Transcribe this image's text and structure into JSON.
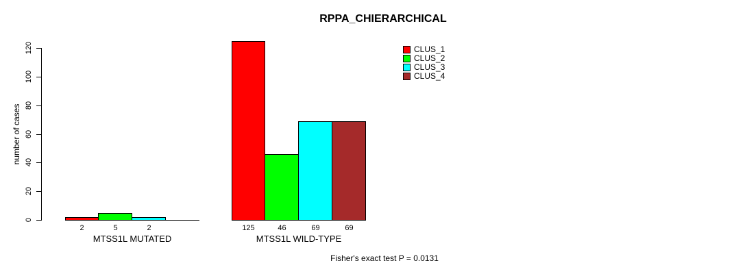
{
  "page": {
    "background_color": "#ffffff",
    "text_color": "#000000"
  },
  "chart_data": {
    "type": "bar",
    "title": "RPPA_CHIERARCHICAL",
    "ylabel": "number of cases",
    "xlabel": "",
    "ylim": [
      0,
      120
    ],
    "yticks": [
      0,
      20,
      40,
      60,
      80,
      100,
      120
    ],
    "grid": false,
    "series_colors": [
      "#ff0000",
      "#00ff00",
      "#00ffff",
      "#a52a2a"
    ],
    "series_names": [
      "CLUS_1",
      "CLUS_2",
      "CLUS_3",
      "CLUS_4"
    ],
    "groups": [
      {
        "label": "MTSS1L MUTATED",
        "values": [
          2,
          5,
          2,
          0
        ],
        "bar_labels": [
          "2",
          "5",
          "2",
          ""
        ]
      },
      {
        "label": "MTSS1L WILD-TYPE",
        "values": [
          125,
          46,
          69,
          69
        ],
        "bar_labels": [
          "125",
          "46",
          "69",
          "69"
        ]
      }
    ],
    "legend": {
      "position": "top-right",
      "entries": [
        {
          "label": "CLUS_1",
          "color": "#ff0000"
        },
        {
          "label": "CLUS_2",
          "color": "#00ff00"
        },
        {
          "label": "CLUS_3",
          "color": "#00ffff"
        },
        {
          "label": "CLUS_4",
          "color": "#a52a2a"
        }
      ]
    },
    "annotation": "Fisher's exact test P = 0.0131"
  }
}
